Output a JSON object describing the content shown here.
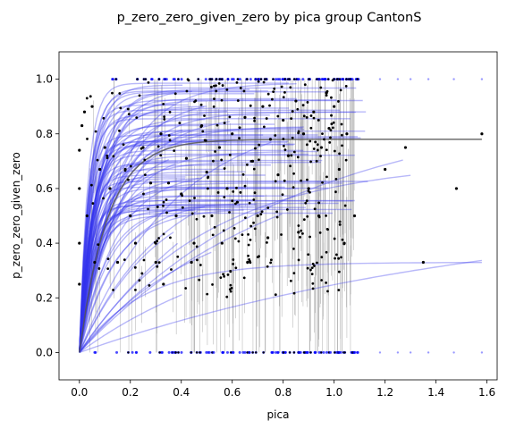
{
  "chart_data": {
    "type": "scatter",
    "title": "p_zero_zero_given_zero by pica group CantonS",
    "xlabel": "pica",
    "ylabel": "p_zero_zero_given_zero",
    "xlim": [
      -0.08,
      1.64
    ],
    "ylim": [
      -0.1,
      1.1
    ],
    "x_ticks": [
      "0.0",
      "0.2",
      "0.4",
      "0.6",
      "0.8",
      "1.0",
      "1.2",
      "1.4",
      "1.6"
    ],
    "y_ticks": [
      "0.0",
      "0.2",
      "0.4",
      "0.6",
      "0.8",
      "1.0"
    ],
    "grid": false,
    "colors": {
      "points": "#000000",
      "zero_one_points": "#0000ff",
      "fit_curves": "#3333ee",
      "mean_fit": "#555555",
      "error_bars": "#999999"
    },
    "series": [
      {
        "points": [
          [
            0.02,
            0.88
          ],
          [
            0.05,
            0.9
          ],
          [
            0.1,
            0.75
          ],
          [
            0.12,
            0.6
          ],
          [
            0.15,
            0.33
          ],
          [
            0.18,
            0.67
          ],
          [
            0.2,
            0.5
          ],
          [
            0.22,
            0.4
          ],
          [
            0.25,
            0.75
          ],
          [
            0.28,
            0.62
          ],
          [
            0.3,
            0.33
          ],
          [
            0.32,
            0.8
          ],
          [
            0.35,
            0.62
          ],
          [
            0.38,
            0.5
          ],
          [
            0.4,
            0.58
          ],
          [
            0.42,
            0.71
          ],
          [
            0.45,
            0.4
          ],
          [
            0.48,
            0.83
          ],
          [
            0.5,
            0.66
          ],
          [
            0.52,
            0.5
          ],
          [
            0.55,
            0.75
          ],
          [
            0.58,
            0.6
          ],
          [
            0.6,
            0.8
          ],
          [
            0.62,
            0.55
          ],
          [
            0.65,
            0.86
          ],
          [
            0.68,
            0.7
          ],
          [
            0.7,
            0.5
          ],
          [
            0.72,
            0.9
          ],
          [
            0.75,
            0.78
          ],
          [
            0.78,
            0.65
          ],
          [
            0.8,
            0.85
          ],
          [
            0.82,
            0.72
          ],
          [
            0.85,
            0.92
          ],
          [
            0.88,
            0.8
          ],
          [
            0.9,
            0.6
          ],
          [
            0.92,
            0.88
          ],
          [
            0.95,
            0.75
          ],
          [
            0.97,
            0.95
          ],
          [
            0.98,
            0.82
          ],
          [
            1.0,
            0.9
          ],
          [
            1.02,
            0.67
          ],
          [
            1.05,
            0.8
          ],
          [
            1.08,
            0.5
          ],
          [
            1.2,
            0.67
          ],
          [
            1.28,
            0.75
          ],
          [
            1.35,
            0.33
          ],
          [
            1.48,
            0.6
          ],
          [
            1.58,
            0.8
          ],
          [
            0.0,
            0.74
          ],
          [
            0.0,
            0.6
          ],
          [
            0.0,
            0.4
          ],
          [
            0.0,
            0.25
          ],
          [
            0.01,
            0.83
          ],
          [
            0.03,
            0.5
          ],
          [
            0.06,
            0.33
          ],
          [
            0.08,
            0.67
          ],
          [
            0.33,
            0.25
          ],
          [
            0.44,
            0.33
          ],
          [
            0.56,
            0.4
          ],
          [
            0.66,
            0.33
          ],
          [
            0.74,
            0.42
          ],
          [
            0.86,
            0.44
          ],
          [
            0.94,
            0.5
          ],
          [
            1.04,
            0.4
          ]
        ]
      }
    ]
  }
}
